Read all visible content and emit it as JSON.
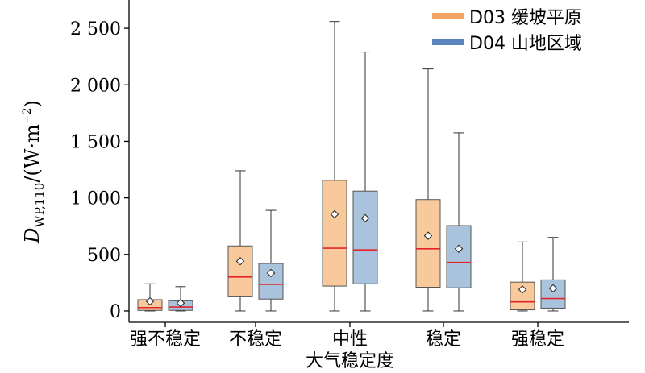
{
  "chart_data": {
    "type": "box",
    "xlabel": "大气稳定度",
    "ylabel": {
      "symbol": "D",
      "subscript": "WP,110",
      "unit_open": "/(W·m",
      "unit_exp": "−2",
      "unit_close": ")"
    },
    "ylim": [
      -100,
      2750
    ],
    "yticks": [
      0,
      500,
      1000,
      1500,
      2000,
      2500
    ],
    "ytick_labels": [
      "0",
      "500",
      "1 000",
      "1 500",
      "2 000",
      "2 500"
    ],
    "categories": [
      "强不稳定",
      "不稳定",
      "中性",
      "稳定",
      "强稳定"
    ],
    "series": [
      {
        "name": "D03 缓坡平原",
        "fill": "#f8c99b",
        "legend_color": "#f4a460",
        "boxes": [
          {
            "min": 0,
            "q1": 5,
            "median": 30,
            "q3": 100,
            "max": 240,
            "mean": 85
          },
          {
            "min": 0,
            "q1": 125,
            "median": 300,
            "q3": 575,
            "max": 1240,
            "mean": 440
          },
          {
            "min": 0,
            "q1": 220,
            "median": 555,
            "q3": 1155,
            "max": 2560,
            "mean": 855
          },
          {
            "min": 0,
            "q1": 210,
            "median": 550,
            "q3": 985,
            "max": 2140,
            "mean": 665
          },
          {
            "min": 0,
            "q1": 10,
            "median": 80,
            "q3": 255,
            "max": 610,
            "mean": 190
          }
        ]
      },
      {
        "name": "D04 山地区域",
        "fill": "#a9c3dd",
        "legend_color": "#5b86bd",
        "boxes": [
          {
            "min": 0,
            "q1": 5,
            "median": 35,
            "q3": 90,
            "max": 215,
            "mean": 70
          },
          {
            "min": 0,
            "q1": 105,
            "median": 235,
            "q3": 420,
            "max": 890,
            "mean": 335
          },
          {
            "min": 0,
            "q1": 240,
            "median": 540,
            "q3": 1060,
            "max": 2290,
            "mean": 820
          },
          {
            "min": 0,
            "q1": 205,
            "median": 430,
            "q3": 755,
            "max": 1575,
            "mean": 550
          },
          {
            "min": 0,
            "q1": 25,
            "median": 110,
            "q3": 275,
            "max": 650,
            "mean": 200
          }
        ]
      }
    ],
    "median_color": "#e2242c",
    "legend_position": "top-right"
  }
}
